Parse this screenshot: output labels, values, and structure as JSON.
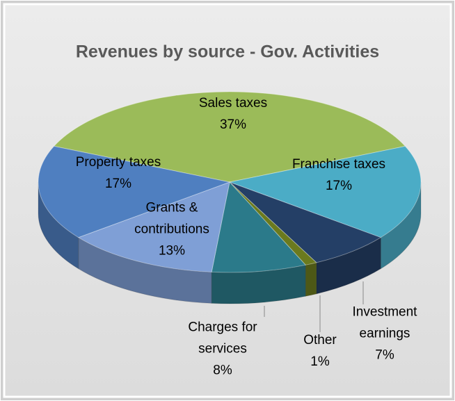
{
  "chart_data": {
    "type": "pie",
    "title": "Revenues by source - Gov. Activities",
    "categories": [
      "Sales taxes",
      "Franchise taxes",
      "Investment earnings",
      "Other",
      "Charges for services",
      "Grants & contributions",
      "Property taxes"
    ],
    "values": [
      37,
      17,
      7,
      1,
      8,
      13,
      17
    ],
    "value_labels": [
      "37%",
      "17%",
      "7%",
      "1%",
      "8%",
      "13%",
      "17%"
    ],
    "colors": [
      "#9bbb59",
      "#4bacc6",
      "#243f66",
      "#6b7a1e",
      "#2b7a8a",
      "#7f9fd6",
      "#4f7fc0"
    ]
  }
}
